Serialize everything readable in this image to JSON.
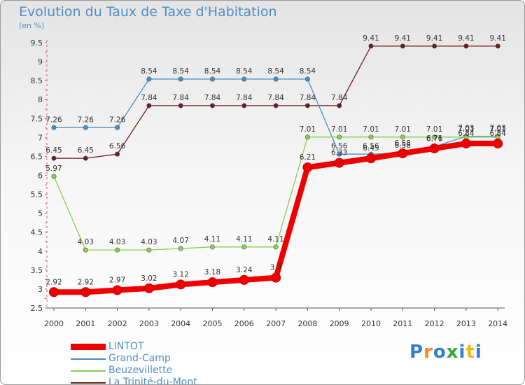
{
  "title": "Evolution du Taux de Taxe d'Habitation",
  "unit": "(en %)",
  "brand": {
    "letters": [
      "P",
      "r",
      "o",
      "x",
      "i",
      "t",
      "i"
    ],
    "colors": [
      "#2f7fd0",
      "#f08a18",
      "#2f7fd0",
      "#38a838",
      "#2f7fd0",
      "#f0b818",
      "#2f7fd0"
    ]
  },
  "chart_data": {
    "type": "line",
    "title": "Evolution du Taux de Taxe d'Habitation",
    "ylabel": "(en %)",
    "xlabel": "",
    "ylim": [
      2.5,
      9.5
    ],
    "y_ticks": [
      "2.5",
      "3",
      "3.5",
      "4",
      "4.5",
      "5",
      "5.5",
      "6",
      "6.5",
      "7",
      "7.5",
      "8",
      "8.5",
      "9",
      "9.5"
    ],
    "x": [
      "2000",
      "2001",
      "2002",
      "2003",
      "2004",
      "2005",
      "2006",
      "2007",
      "2008",
      "2009",
      "2010",
      "2011",
      "2012",
      "2013",
      "2014"
    ],
    "grid": false,
    "legend": "bottom-left",
    "series": [
      {
        "name": "La Trinité-du-Mont",
        "color": "#6b1c1c",
        "values": [
          6.45,
          6.45,
          6.56,
          7.84,
          7.84,
          7.84,
          7.84,
          7.84,
          7.84,
          7.84,
          9.41,
          9.41,
          9.41,
          9.41,
          9.41
        ],
        "labels": [
          "6.45",
          "6.45",
          "6.56",
          "7.84",
          "7.84",
          "7.84",
          "7.84",
          "7.84",
          "7.84",
          "7.84",
          "9.41",
          "9.41",
          "9.41",
          "9.41",
          "9.41"
        ]
      },
      {
        "name": "Grand-Camp",
        "color": "#4a90c8",
        "values": [
          7.26,
          7.26,
          7.26,
          8.54,
          8.54,
          8.54,
          8.54,
          8.54,
          8.54,
          6.56,
          6.56,
          6.58,
          6.76,
          7.03,
          7.03
        ],
        "labels": [
          "7.26",
          "7.26",
          "7.26",
          "8.54",
          "8.54",
          "8.54",
          "8.54",
          "8.54",
          "8.54",
          "6.56",
          "6.56",
          "6.58",
          "6.76",
          "7.03",
          "7.03"
        ]
      },
      {
        "name": "Beuzevillette",
        "color": "#88d050",
        "values": [
          5.97,
          4.03,
          4.03,
          4.03,
          4.07,
          4.11,
          4.11,
          4.11,
          7.01,
          7.01,
          7.01,
          7.01,
          7.01,
          7.01,
          7.01
        ],
        "labels": [
          "5.97",
          "4.03",
          "4.03",
          "4.03",
          "4.07",
          "4.11",
          "4.11",
          "4.11",
          "7.01",
          "7.01",
          "7.01",
          "7.01",
          "7.01",
          "7.01",
          "7.01"
        ]
      },
      {
        "name": "LINTOT",
        "color": "#ee0000",
        "values": [
          2.92,
          2.92,
          2.97,
          3.02,
          3.12,
          3.18,
          3.24,
          3.3,
          6.21,
          6.33,
          6.45,
          6.58,
          6.71,
          6.84,
          6.84
        ],
        "labels": [
          "2.92",
          "2.92",
          "2.97",
          "3.02",
          "3.12",
          "3.18",
          "3.24",
          "3.3",
          "6.21",
          "6.33",
          "6.45",
          "6.58",
          "6.71",
          "6.84",
          "6.84"
        ]
      }
    ]
  },
  "legend_items": [
    {
      "name": "LINTOT",
      "color": "#ee0000"
    },
    {
      "name": "Grand-Camp",
      "color": "#4a90c8"
    },
    {
      "name": "Beuzevillette",
      "color": "#88d050"
    },
    {
      "name": "La Trinité-du-Mont",
      "color": "#6b1c1c"
    }
  ]
}
